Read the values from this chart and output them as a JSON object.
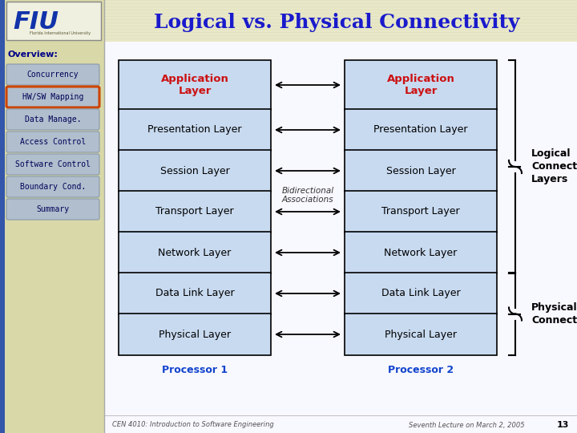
{
  "title": "Logical vs. Physical Connectivity",
  "title_color": "#1a1acc",
  "title_fontsize": 18,
  "overview_text": "Overview:",
  "nav_buttons": [
    "Concurrency",
    "HW/SW Mapping",
    "Data Manage.",
    "Access Control",
    "Software Control",
    "Boundary Cond.",
    "Summary"
  ],
  "active_button": "HW/SW Mapping",
  "layers": [
    "Application\nLayer",
    "Presentation Layer",
    "Session Layer",
    "Transport Layer",
    "Network Layer",
    "Data Link Layer",
    "Physical Layer"
  ],
  "box_facecolor": "#c8daf0",
  "app_layer_text_color": "#cc1111",
  "normal_text_color": "#000000",
  "box_border_color": "#000000",
  "bidirectional_label": "Bidirectional\nAssociations",
  "processor1_label": "Processor 1",
  "processor2_label": "Processor 2",
  "processor_label_color": "#1144cc",
  "logical_label": "Logical\nConnectivity\nLayers",
  "physical_label": "Physical\nConnectivity",
  "footer_left": "CEN 4010: Introduction to Software Engineering",
  "footer_right": "Seventh Lecture on March 2, 2005",
  "footer_num": "13",
  "sidebar_color": "#d8d8a8",
  "sidebar_stripe_color": "#c8c890",
  "header_stripe_color": "#e8e8c0",
  "btn_facecolor": "#b0bece",
  "btn_active_edge": "#cc4400",
  "btn_normal_edge": "#8899aa"
}
